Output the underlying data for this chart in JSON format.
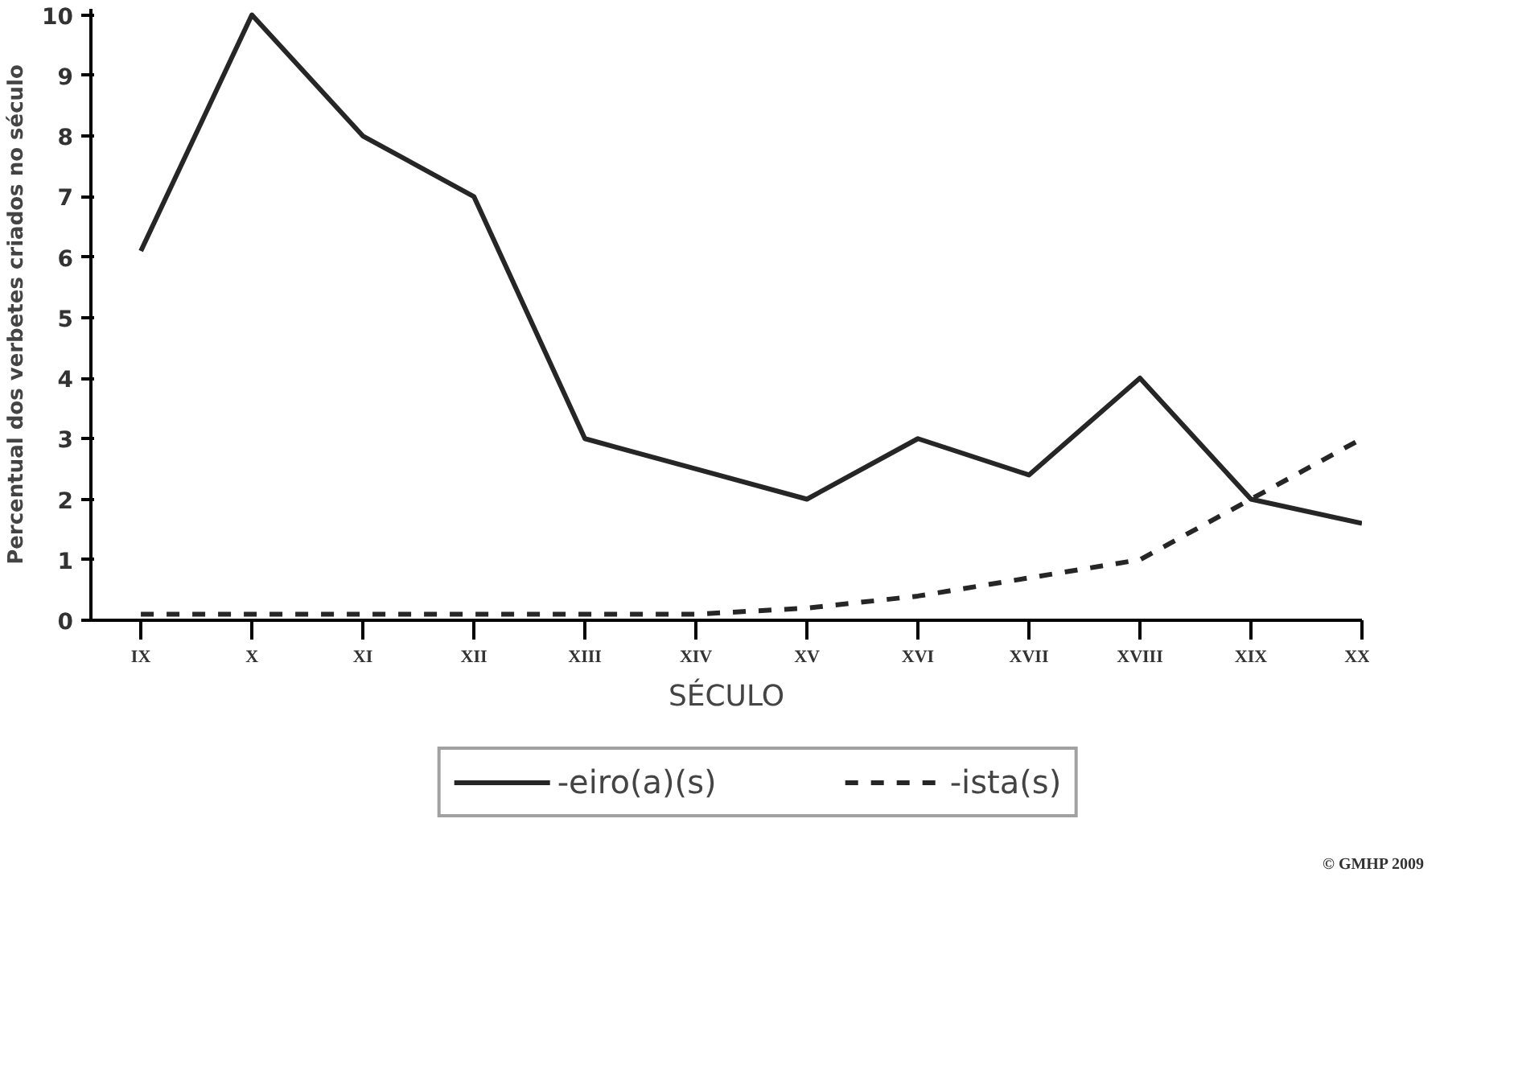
{
  "chart_data": {
    "type": "line",
    "xlabel": "SÉCULO",
    "ylabel": "Percentual dos verbetes criados no século",
    "categories": [
      "IX",
      "X",
      "XI",
      "XII",
      "XIII",
      "XIV",
      "XV",
      "XVI",
      "XVII",
      "XVIII",
      "XIX",
      "XX"
    ],
    "series": [
      {
        "name": "-eiro(a)(s)",
        "color": "#262626",
        "line_style": "solid",
        "values": [
          6.1,
          10,
          8,
          7,
          3,
          2.5,
          2,
          3,
          2.4,
          4,
          2,
          1.6
        ]
      },
      {
        "name": "-ista(s)",
        "color": "#262626",
        "line_style": "dashed",
        "values": [
          0.1,
          0.1,
          0.1,
          0.1,
          0.1,
          0.1,
          0.2,
          0.4,
          0.7,
          1,
          2,
          3
        ]
      }
    ],
    "ylim": [
      0,
      10.1
    ],
    "yticks": [
      0,
      1,
      2,
      3,
      4,
      5,
      6,
      7,
      8,
      9,
      10
    ],
    "grid": false,
    "legend": "bottom",
    "marker": "none",
    "annotations": [
      "© GMHP 2009"
    ]
  }
}
